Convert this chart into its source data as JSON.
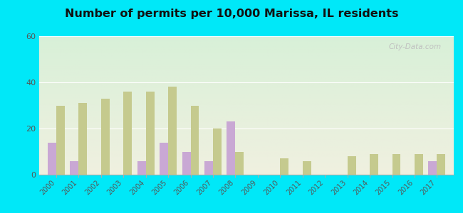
{
  "title": "Number of permits per 10,000 Marissa, IL residents",
  "years": [
    2000,
    2001,
    2002,
    2003,
    2004,
    2005,
    2006,
    2007,
    2008,
    2009,
    2010,
    2011,
    2012,
    2013,
    2014,
    2015,
    2016,
    2017
  ],
  "marissa": [
    14,
    6,
    0,
    0,
    6,
    14,
    10,
    6,
    23,
    0,
    0,
    0,
    0,
    0,
    0,
    0,
    0,
    6
  ],
  "illinois": [
    30,
    31,
    33,
    36,
    36,
    38,
    30,
    20,
    10,
    0,
    7,
    6,
    0,
    8,
    9,
    9,
    9,
    9
  ],
  "marissa_color": "#c9a8d4",
  "illinois_color": "#c5ca8e",
  "bg_top": "#d8f0d8",
  "bg_bottom": "#f0f0e0",
  "outer_bg": "#00e8f8",
  "ylim": [
    0,
    60
  ],
  "yticks": [
    0,
    20,
    40,
    60
  ],
  "bar_width": 0.38,
  "watermark": "City-Data.com"
}
